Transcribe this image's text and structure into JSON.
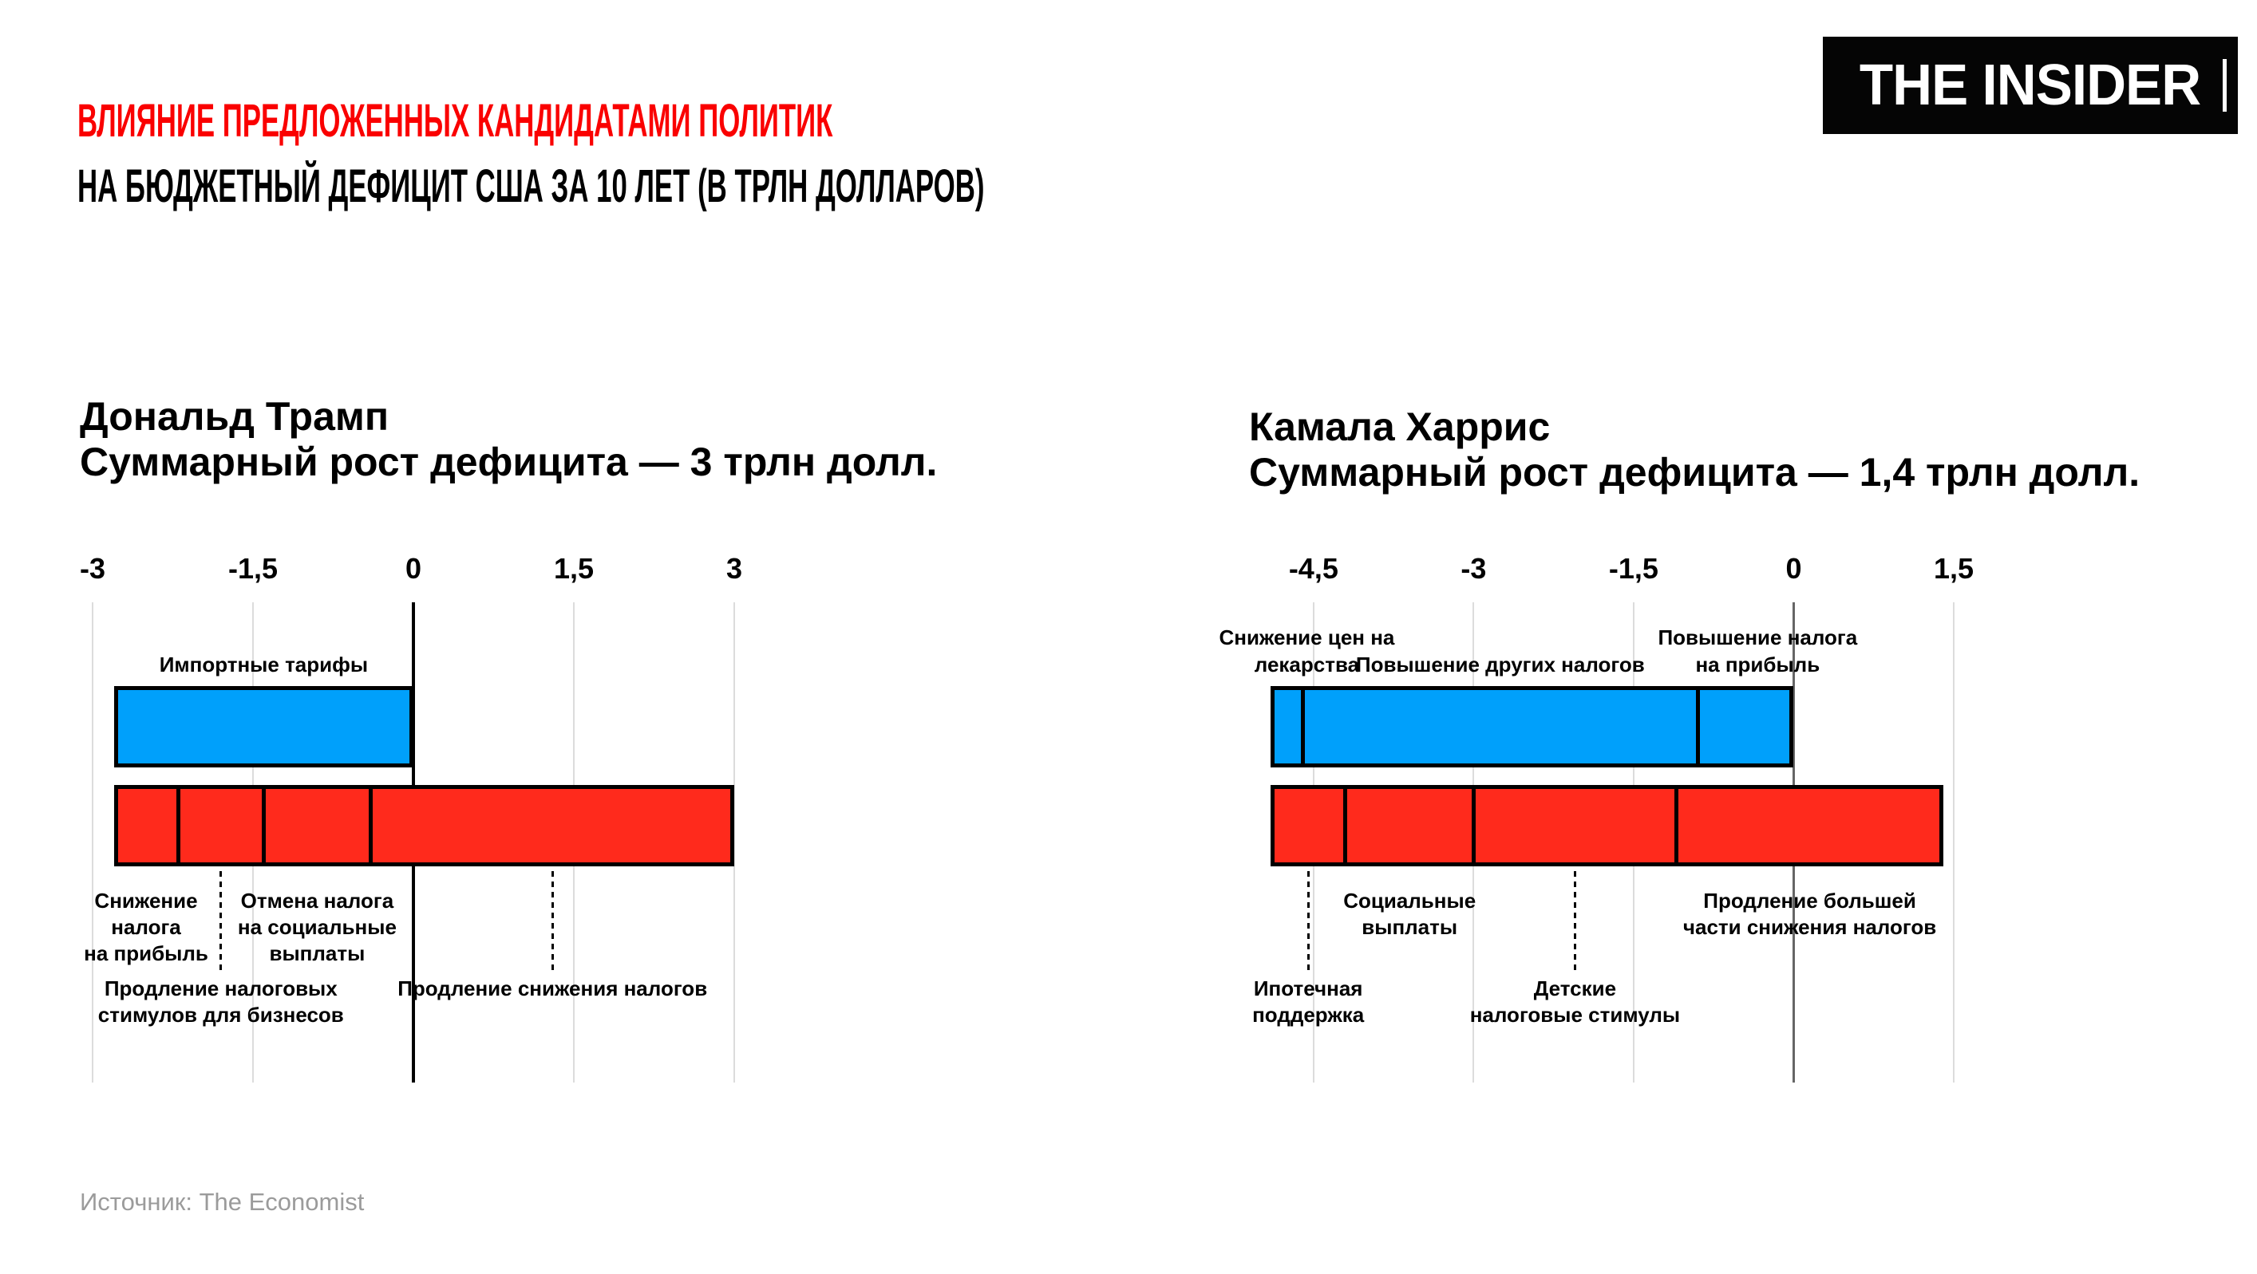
{
  "header": {
    "title_line1": "ВЛИЯНИЕ ПРЕДЛОЖЕННЫХ КАНДИДАТАМИ ПОЛИТИК",
    "title_line2": "НА БЮДЖЕТНЫЙ ДЕФИЦИТ США ЗА 10 ЛЕТ (В ТРЛН ДОЛЛАРОВ)",
    "title_color": "#FA0000",
    "logo_text": "THE INSIDER"
  },
  "footer": {
    "source": "Источник: The Economist"
  },
  "colors": {
    "title_red": "#FA0000",
    "increase_fill": "#FF2A1C",
    "decrease_fill": "#00A0FB",
    "gridline": "#dcdcdc",
    "zero_line_left": "#000000",
    "zero_line_right": "#666666",
    "source_gray": "#9b9b9b"
  },
  "chart_data": [
    {
      "type": "bar",
      "variant": "diverging-stacked-horizontal",
      "candidate": "Дональд Трамп",
      "subtitle": "Суммарный рост дефицита — 3 трлн долл.",
      "net_deficit_growth_trn": 3,
      "unit": "трлн долларов",
      "axis_range": [
        -3,
        3
      ],
      "ticks": [
        {
          "label": "-3",
          "value": -3
        },
        {
          "label": "-1,5",
          "value": -1.5
        },
        {
          "label": "0",
          "value": 0
        },
        {
          "label": "1,5",
          "value": 1.5
        },
        {
          "label": "3",
          "value": 3
        }
      ],
      "decrease_segments": [
        {
          "label": "Импортные тарифы",
          "label_lines": [
            "Импортные тарифы"
          ],
          "value_trn": -2.8
        }
      ],
      "increase_segments": [
        {
          "label": "Снижение налога на прибыль",
          "label_lines": [
            "Снижение",
            "налога",
            "на прибыль"
          ],
          "value_trn": 0.6,
          "label_row": 1
        },
        {
          "label": "Продление налоговых стимулов для бизнесов",
          "label_lines": [
            "Продление налоговых",
            "стимулов для бизнесов"
          ],
          "value_trn": 0.8,
          "label_row": 2
        },
        {
          "label": "Отмена налога на социальные выплаты",
          "label_lines": [
            "Отмена налога",
            "на социальные",
            "выплаты"
          ],
          "value_trn": 1.0,
          "label_row": 1
        },
        {
          "label": "Продление снижения налогов",
          "label_lines": [
            "Продление снижения налогов"
          ],
          "value_trn": 3.4,
          "label_row": 2
        }
      ]
    },
    {
      "type": "bar",
      "variant": "diverging-stacked-horizontal",
      "candidate": "Камала Харрис",
      "subtitle": "Суммарный рост дефицита — 1,4 трлн долл.",
      "net_deficit_growth_trn": 1.4,
      "unit": "трлн долларов",
      "axis_range": [
        -4.5,
        1.5
      ],
      "ticks": [
        {
          "label": "-4,5",
          "value": -4.5
        },
        {
          "label": "-3",
          "value": -3
        },
        {
          "label": "-1,5",
          "value": -1.5
        },
        {
          "label": "0",
          "value": 0
        },
        {
          "label": "1,5",
          "value": 1.5
        }
      ],
      "decrease_segments": [
        {
          "label": "Снижение цен на лекарства",
          "label_lines": [
            "Снижение цен на",
            "лекарства"
          ],
          "value_trn": -0.3
        },
        {
          "label": "Повышение других налогов",
          "label_lines": [
            "Повышение других налогов"
          ],
          "value_trn": -3.7
        },
        {
          "label": "Повышение налога на прибыль",
          "label_lines": [
            "Повышение налога",
            "на прибыль"
          ],
          "value_trn": -0.9
        }
      ],
      "increase_segments": [
        {
          "label": "Ипотечная поддержка",
          "label_lines": [
            "Ипотечная",
            "поддержка"
          ],
          "value_trn": 0.7,
          "label_row": 2
        },
        {
          "label": "Социальные выплаты",
          "label_lines": [
            "Социальные",
            "выплаты"
          ],
          "value_trn": 1.2,
          "label_row": 1
        },
        {
          "label": "Детские налоговые стимулы",
          "label_lines": [
            "Детские",
            "налоговые стимулы"
          ],
          "value_trn": 1.9,
          "label_row": 2
        },
        {
          "label": "Продление большей части снижения налогов",
          "label_lines": [
            "Продление большей",
            "части снижения налогов"
          ],
          "value_trn": 2.5,
          "label_row": 1
        }
      ]
    }
  ]
}
